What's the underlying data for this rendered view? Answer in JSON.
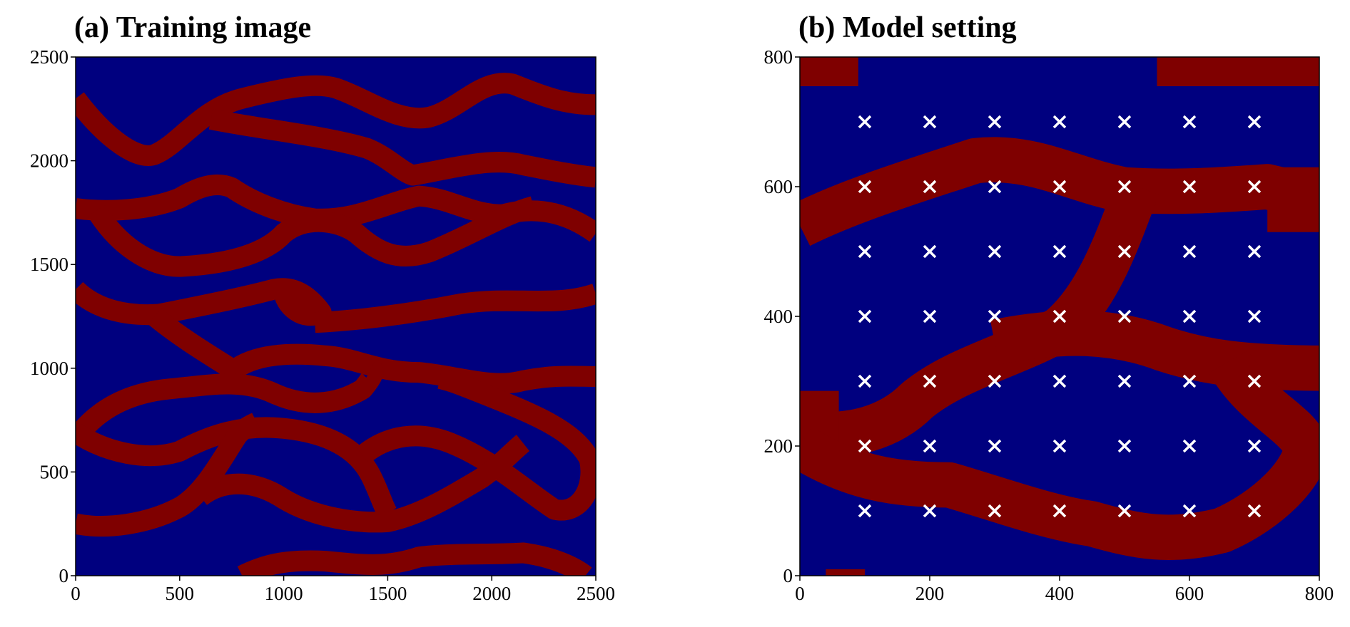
{
  "chart_data": [
    {
      "type": "image",
      "title": "(a) Training image",
      "xlim": [
        0,
        2500
      ],
      "ylim": [
        0,
        2500
      ],
      "xticks": [
        0,
        500,
        1000,
        1500,
        2000,
        2500
      ],
      "yticks": [
        0,
        500,
        1000,
        1500,
        2000,
        2500
      ],
      "background_color": "#00007f",
      "channel_color": "#7f0000"
    },
    {
      "type": "scatter",
      "title": "(b) Model setting",
      "xlim": [
        0,
        800
      ],
      "ylim": [
        0,
        800
      ],
      "xticks": [
        0,
        200,
        400,
        600,
        800
      ],
      "yticks": [
        0,
        200,
        400,
        600,
        800
      ],
      "background_color": "#00007f",
      "channel_color": "#7f0000",
      "marker": "x",
      "color": "#ffffff",
      "x": [
        100,
        200,
        300,
        400,
        500,
        600,
        700,
        100,
        200,
        300,
        400,
        500,
        600,
        700,
        100,
        200,
        300,
        400,
        500,
        600,
        700,
        100,
        200,
        300,
        400,
        500,
        600,
        700,
        100,
        200,
        300,
        400,
        500,
        600,
        700,
        100,
        200,
        300,
        400,
        500,
        600,
        700,
        100,
        200,
        300,
        400,
        500,
        600,
        700
      ],
      "y": [
        100,
        100,
        100,
        100,
        100,
        100,
        100,
        200,
        200,
        200,
        200,
        200,
        200,
        200,
        300,
        300,
        300,
        300,
        300,
        300,
        300,
        400,
        400,
        400,
        400,
        400,
        400,
        400,
        500,
        500,
        500,
        500,
        500,
        500,
        500,
        600,
        600,
        600,
        600,
        600,
        600,
        600,
        700,
        700,
        700,
        700,
        700,
        700,
        700
      ]
    }
  ]
}
